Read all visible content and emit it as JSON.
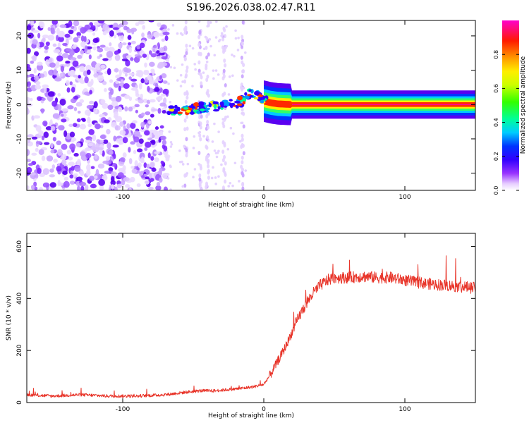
{
  "title": "S196.2026.038.02.47.R11",
  "chart_data": [
    {
      "type": "heatmap",
      "xlabel": "Height of straight line (km)",
      "ylabel": "Frequency (Hz)",
      "xlim": [
        -168,
        150
      ],
      "ylim": [
        -25,
        24.5
      ],
      "x_ticks": [
        -100,
        0,
        100
      ],
      "y_ticks": [
        -20,
        -10,
        0,
        10,
        20
      ],
      "colorbar": {
        "label": "Normalized spectral amplitude",
        "range": [
          0,
          1
        ],
        "ticks": [
          0.0,
          0.2,
          0.4,
          0.6,
          0.8
        ],
        "colors": [
          "#ffffff",
          "#cc99ff",
          "#6600ff",
          "#0000ff",
          "#00ccff",
          "#00ff66",
          "#99ff00",
          "#ffff00",
          "#ff9900",
          "#ff0000",
          "#ff00aa"
        ]
      },
      "features": {
        "noise_region_x": [
          -168,
          -68
        ],
        "transition_region_x": [
          -68,
          -12
        ],
        "signal_track": {
          "x": [
            -68,
            -55,
            -45,
            -35,
            -25,
            -15,
            -10,
            -5,
            0,
            5,
            10,
            20,
            150
          ],
          "y": [
            -2,
            -1.5,
            -1,
            -0.5,
            0,
            1,
            3,
            3,
            1,
            0.5,
            0.2,
            0,
            0
          ]
        }
      }
    },
    {
      "type": "line",
      "xlabel": "Height of straight line (km)",
      "ylabel": "SNR (10 * v/v)",
      "xlim": [
        -168,
        150
      ],
      "ylim": [
        0,
        650
      ],
      "x_ticks": [
        -100,
        0,
        100
      ],
      "y_ticks": [
        0,
        200,
        400,
        600
      ],
      "series": [
        {
          "name": "SNR",
          "color": "#e8352a",
          "x": [
            -168,
            -150,
            -130,
            -110,
            -90,
            -70,
            -55,
            -45,
            -35,
            -25,
            -15,
            -8,
            0,
            5,
            10,
            15,
            20,
            25,
            30,
            35,
            40,
            45,
            50,
            60,
            70,
            80,
            90,
            100,
            110,
            120,
            130,
            140,
            150
          ],
          "y": [
            30,
            25,
            30,
            25,
            25,
            30,
            40,
            45,
            45,
            50,
            55,
            60,
            70,
            110,
            160,
            210,
            270,
            330,
            380,
            420,
            450,
            470,
            480,
            480,
            485,
            480,
            480,
            470,
            460,
            455,
            450,
            445,
            440
          ]
        }
      ]
    }
  ]
}
